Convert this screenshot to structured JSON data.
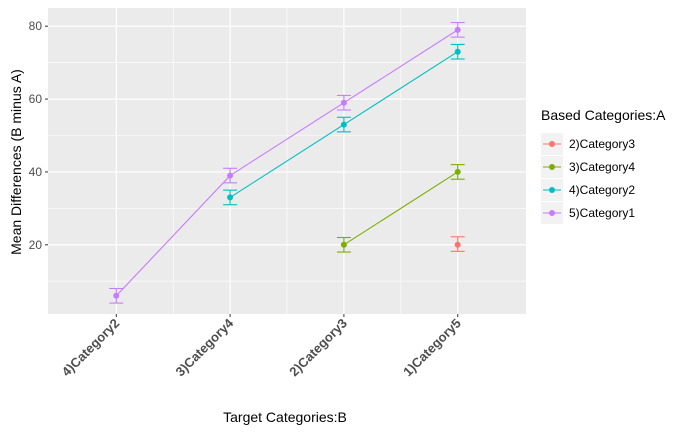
{
  "chart_data": {
    "type": "line",
    "xlabel": "Target Categories:B",
    "ylabel": "Mean Differences (B minus A)",
    "categories": [
      "4)Category2",
      "3)Category4",
      "2)Category3",
      "1)Category5"
    ],
    "ylim": [
      1,
      85
    ],
    "yticks": [
      20,
      40,
      60,
      80
    ],
    "grid": true,
    "legend": {
      "title": "Based Categories:A",
      "position": "right"
    },
    "series": [
      {
        "name": "2)Category3",
        "color": "#F8766D",
        "points": [
          {
            "x": "1)Category5",
            "y": 20,
            "lo": 18.2,
            "hi": 22.2
          }
        ]
      },
      {
        "name": "3)Category4",
        "color": "#7CAE00",
        "points": [
          {
            "x": "2)Category3",
            "y": 20,
            "lo": 18,
            "hi": 22
          },
          {
            "x": "1)Category5",
            "y": 40,
            "lo": 38,
            "hi": 42
          }
        ]
      },
      {
        "name": "4)Category2",
        "color": "#00BFC4",
        "points": [
          {
            "x": "3)Category4",
            "y": 33,
            "lo": 31,
            "hi": 35
          },
          {
            "x": "2)Category3",
            "y": 53,
            "lo": 51,
            "hi": 55
          },
          {
            "x": "1)Category5",
            "y": 73,
            "lo": 71,
            "hi": 75
          }
        ]
      },
      {
        "name": "5)Category1",
        "color": "#C77CFF",
        "points": [
          {
            "x": "4)Category2",
            "y": 6,
            "lo": 4,
            "hi": 8
          },
          {
            "x": "3)Category4",
            "y": 39,
            "lo": 37,
            "hi": 41
          },
          {
            "x": "2)Category3",
            "y": 59,
            "lo": 57,
            "hi": 61
          },
          {
            "x": "1)Category5",
            "y": 79,
            "lo": 77,
            "hi": 81
          }
        ]
      }
    ]
  }
}
